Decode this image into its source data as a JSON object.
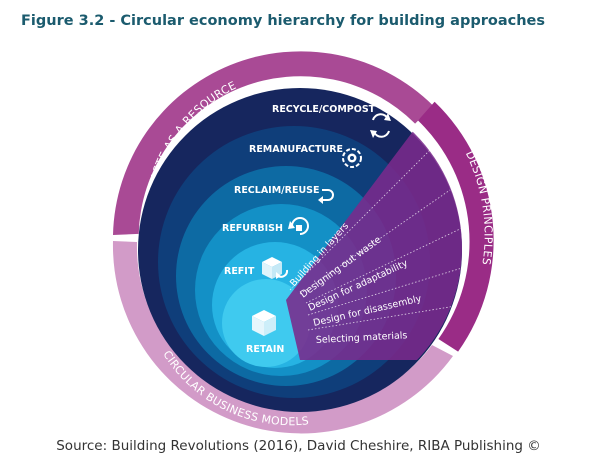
{
  "figure": {
    "title": "Figure 3.2 - Circular economy hierarchy for building approaches",
    "source": "Source: Building Revolutions (2016), David Cheshire, RIBA Publishing ©"
  },
  "outer_ring": {
    "waste_as_resource": "WASTE AS A RESOURCE",
    "design_principles": "DESIGN PRINCIPLES",
    "circular_business_models": "CIRCULAR BUSINESS MODELS"
  },
  "hierarchy": [
    {
      "label": "RECYCLE/COMPOST",
      "icon": "recycle-icon"
    },
    {
      "label": "REMANUFACTURE",
      "icon": "gear-cycle-icon"
    },
    {
      "label": "RECLAIM/REUSE",
      "icon": "return-arrow-icon"
    },
    {
      "label": "REFURBISH",
      "icon": "refurbish-cycle-icon"
    },
    {
      "label": "REFIT",
      "icon": "box-refit-icon"
    },
    {
      "label": "RETAIN",
      "icon": "box-icon"
    }
  ],
  "design_principles": [
    "Building in layers",
    "Designing out waste",
    "Design for adaptability",
    "Design for disassembly",
    "Selecting materials"
  ],
  "colors": {
    "title": "#1b5b6e",
    "waste_ring": "#a94a95",
    "design_ring": "#9a2c86",
    "business_ring": "#d29bc8",
    "level_1": "#16265e",
    "level_2": "#0f3e7a",
    "level_3": "#0d6aa3",
    "level_4": "#1390c6",
    "level_5": "#26b3e3",
    "level_6": "#3fcaef",
    "wedge": "#7a2a8c"
  }
}
